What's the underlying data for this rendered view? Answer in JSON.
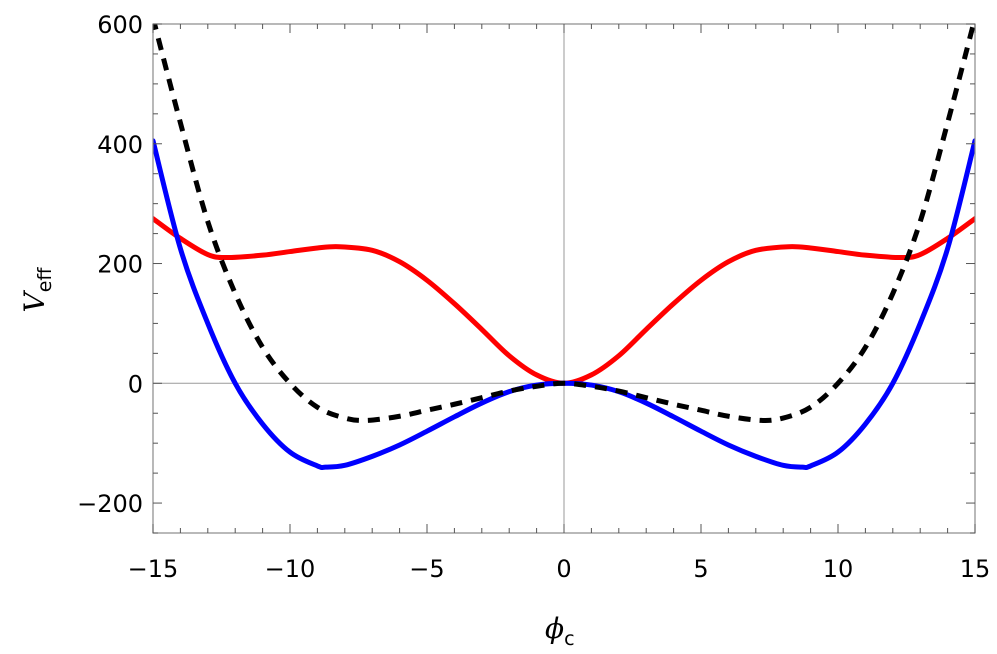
{
  "chart_data": {
    "type": "line",
    "title": "",
    "xlabel": "ϕ",
    "xlabel_subscript": "c",
    "ylabel": "V",
    "ylabel_subscript": "eff",
    "xlim": [
      -15,
      15
    ],
    "ylim": [
      -250,
      600
    ],
    "x_ticks": [
      -15,
      -10,
      -5,
      0,
      5,
      10,
      15
    ],
    "x_tick_labels": [
      "−15",
      "−10",
      "−5",
      "0",
      "5",
      "10",
      "15"
    ],
    "y_ticks": [
      -200,
      0,
      200,
      400,
      600
    ],
    "y_tick_labels": [
      "−200",
      "0",
      "200",
      "400",
      "600"
    ],
    "grid": false,
    "axes_at_origin": true,
    "series": [
      {
        "color": "#ff0000",
        "style": "solid",
        "x": [
          -15,
          -14,
          -13,
          -12.3,
          -11,
          -10,
          -9,
          -8.2,
          -7,
          -6,
          -5,
          -4,
          -3,
          -2,
          -1,
          0,
          1,
          2,
          3,
          4,
          5,
          6,
          7,
          8.2,
          9,
          10,
          11,
          12.3,
          13,
          14,
          15
        ],
        "y": [
          275,
          242,
          215,
          210,
          214,
          220,
          226,
          228,
          222,
          203,
          172,
          133,
          90,
          46,
          14,
          0,
          14,
          46,
          90,
          133,
          172,
          203,
          222,
          228,
          226,
          220,
          214,
          210,
          215,
          242,
          275
        ]
      },
      {
        "color": "#0000ff",
        "style": "solid",
        "x": [
          -15,
          -14,
          -13,
          -12,
          -11,
          -10,
          -9,
          -8.7,
          -8,
          -7,
          -6,
          -5,
          -4,
          -3,
          -2,
          -1,
          0,
          1,
          2,
          3,
          4,
          5,
          6,
          7,
          8,
          8.7,
          9,
          10,
          11,
          12,
          13,
          14,
          15
        ],
        "y": [
          405,
          225,
          100,
          0,
          -68,
          -115,
          -138,
          -140,
          -137,
          -122,
          -103,
          -80,
          -56,
          -33,
          -14,
          -3,
          0,
          -3,
          -14,
          -33,
          -56,
          -80,
          -103,
          -122,
          -137,
          -140,
          -138,
          -115,
          -68,
          0,
          100,
          225,
          405
        ],
        "note": ""
      },
      {
        "color": "#000000",
        "style": "dashed",
        "x": [
          -15,
          -14,
          -13,
          -12,
          -11,
          -10,
          -9,
          -8,
          -7.2,
          -6,
          -5,
          -4,
          -3,
          -2,
          -1,
          0,
          1,
          2,
          3,
          4,
          5,
          6,
          7.2,
          8,
          9,
          10,
          11,
          12,
          13,
          14,
          15
        ],
        "y": [
          610,
          435,
          270,
          150,
          60,
          0,
          -40,
          -58,
          -62,
          -55,
          -45,
          -35,
          -24,
          -13,
          -5,
          0,
          -5,
          -13,
          -24,
          -35,
          -45,
          -55,
          -62,
          -58,
          -40,
          0,
          60,
          150,
          270,
          435,
          610
        ]
      }
    ]
  }
}
